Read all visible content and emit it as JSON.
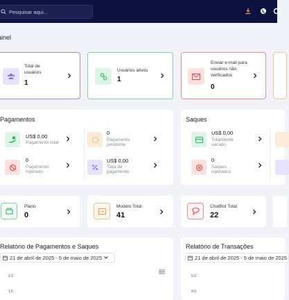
{
  "header": {
    "search_placeholder": "Pesquisar aqui...",
    "icons": [
      "search-icon",
      "download-icon",
      "globe-icon",
      "settings-icon"
    ]
  },
  "page": {
    "title": "ainel"
  },
  "stat_cards": [
    {
      "label": "Total de usuários",
      "value": "1",
      "icon": "users-icon",
      "color": "#7c6cf0"
    },
    {
      "label": "Usuários ativos",
      "value": "1",
      "icon": "user-check-icon",
      "color": "#2fb86a"
    },
    {
      "label": "Enviar e-mail para usuários não verificados",
      "value": "0",
      "icon": "mail-icon",
      "color": "#e4524e"
    }
  ],
  "payments": {
    "title": "Pagamentos",
    "items": [
      {
        "value": "US$ 0,00",
        "label": "Pagamento total",
        "icon": "hand-money-icon",
        "color": "#2fb86a"
      },
      {
        "value": "0",
        "label": "Pagamento pendente",
        "icon": "spinner-icon",
        "color": "#f0a14a"
      },
      {
        "value": "0",
        "label": "Pagamento rejeitado",
        "icon": "ban-icon",
        "color": "#e4524e"
      },
      {
        "value": "US$ 0,00",
        "label": "Taxa de pagamento",
        "icon": "percent-icon",
        "color": "#7c6cf0"
      }
    ]
  },
  "withdrawals": {
    "title": "Saques",
    "items": [
      {
        "value": "US$ 0,00",
        "label": "Totalmente sacado",
        "icon": "card-icon",
        "color": "#2fb86a"
      },
      {
        "value": "0",
        "label": "Saques rejeitados",
        "icon": "x-circle-icon",
        "color": "#e4524e"
      }
    ]
  },
  "small_cards": [
    {
      "label": "Plano",
      "value": "0",
      "icon": "plan-icon",
      "color": "#2fb86a"
    },
    {
      "label": "Modelo Total",
      "value": "41",
      "icon": "template-icon",
      "color": "#f0a14a"
    },
    {
      "label": "ChatBot Total",
      "value": "22",
      "icon": "chatbot-icon",
      "color": "#e4524e"
    }
  ],
  "report_left": {
    "title": "Relatório de Pagamentos e Saques",
    "date_range": "21 de abril de 2025 - 5 de maio de 2025",
    "y_ticks": [
      "2.0",
      "1.6"
    ]
  },
  "report_right": {
    "title": "Relatório de Transações",
    "date_range": "21 de abril de 2025 - 5 de maio de 2025",
    "y_ticks": [
      "5.0",
      "4.0"
    ]
  }
}
